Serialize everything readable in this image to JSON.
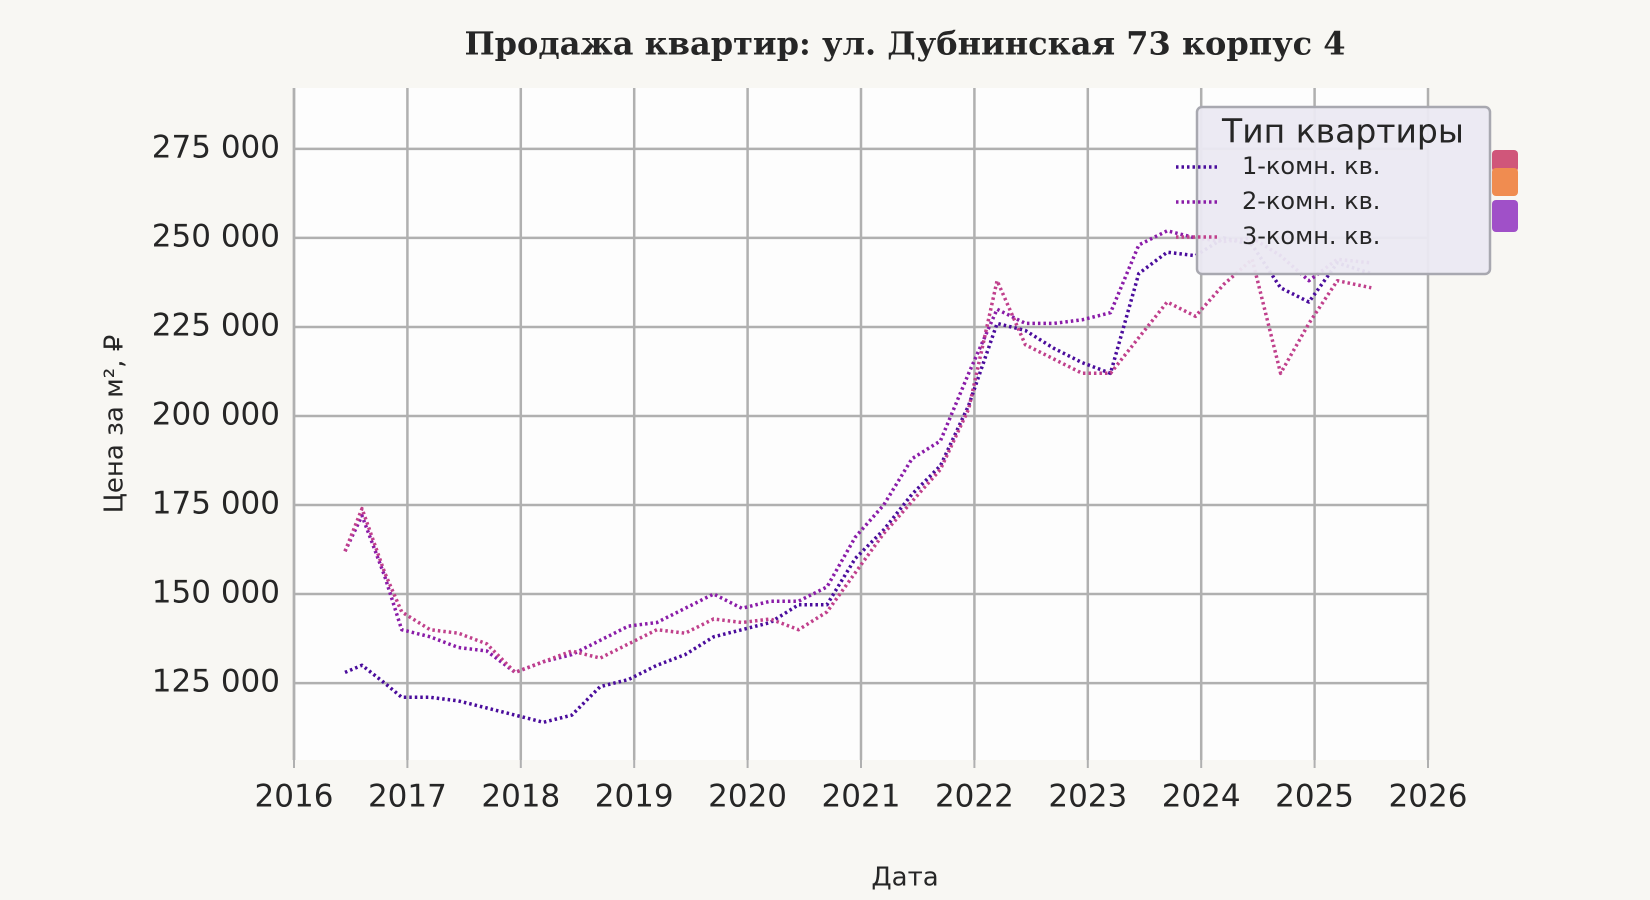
{
  "chart_data": {
    "type": "line",
    "title": "Продажа квартир: ул. Дубнинская 73 корпус 4",
    "x_label": "Дата",
    "y_label": "Цена за м², ₽",
    "legend_title": "Тип квартиры",
    "legend": "upper right",
    "grid": true,
    "x": [
      2016.45,
      2016.6,
      2016.8,
      2016.95,
      2017.2,
      2017.45,
      2017.7,
      2017.95,
      2018.2,
      2018.45,
      2018.7,
      2018.95,
      2019.2,
      2019.45,
      2019.7,
      2019.95,
      2020.2,
      2020.45,
      2020.7,
      2020.95,
      2021.2,
      2021.45,
      2021.7,
      2021.95,
      2022.2,
      2022.45,
      2022.7,
      2022.95,
      2023.2,
      2023.45,
      2023.7,
      2023.95,
      2024.2,
      2024.45,
      2024.7,
      2024.95,
      2025.2,
      2025.5
    ],
    "series": [
      {
        "name": "1-комн. кв.",
        "color": "#4a0c9c",
        "values": [
          128000,
          130000,
          125000,
          121000,
          121000,
          120000,
          118000,
          116000,
          114000,
          116000,
          124000,
          126000,
          130000,
          133000,
          138000,
          140000,
          142000,
          147000,
          147000,
          160000,
          168000,
          178000,
          186000,
          203000,
          226000,
          224000,
          219000,
          215000,
          212000,
          240000,
          246000,
          245000,
          250000,
          248000,
          236000,
          232000,
          243000,
          240000
        ]
      },
      {
        "name": "2-комн. кв.",
        "color": "#8a1ca8",
        "values": [
          162000,
          172000,
          155000,
          140000,
          138000,
          135000,
          134000,
          128000,
          131000,
          133000,
          137000,
          141000,
          142000,
          146000,
          150000,
          146000,
          148000,
          148000,
          152000,
          166000,
          175000,
          188000,
          193000,
          212000,
          230000,
          226000,
          226000,
          227000,
          229000,
          248000,
          252000,
          250000,
          249000,
          250000,
          245000,
          238000,
          244000,
          243000
        ]
      },
      {
        "name": "3-комн. кв.",
        "color": "#c0408c",
        "values": [
          162000,
          174000,
          156000,
          145000,
          140000,
          139000,
          136000,
          128000,
          131000,
          134000,
          132000,
          136000,
          140000,
          139000,
          143000,
          142000,
          143000,
          140000,
          145000,
          156000,
          167000,
          176000,
          185000,
          202000,
          238000,
          220000,
          216000,
          212000,
          212000,
          222000,
          232000,
          228000,
          237000,
          244000,
          212000,
          226000,
          238000,
          236000
        ]
      }
    ],
    "xlim": [
      2016,
      2026
    ],
    "xticks": [
      2016,
      2017,
      2018,
      2019,
      2020,
      2021,
      2022,
      2023,
      2024,
      2025,
      2026
    ],
    "ylim": [
      103400,
      292100
    ],
    "yticks": [
      {
        "value": 125000,
        "label": "125 000"
      },
      {
        "value": 150000,
        "label": "150 000"
      },
      {
        "value": 175000,
        "label": "175 000"
      },
      {
        "value": 200000,
        "label": "200 000"
      },
      {
        "value": 225000,
        "label": "225 000"
      },
      {
        "value": 250000,
        "label": "250 000"
      },
      {
        "value": 275000,
        "label": "275 000"
      }
    ]
  }
}
